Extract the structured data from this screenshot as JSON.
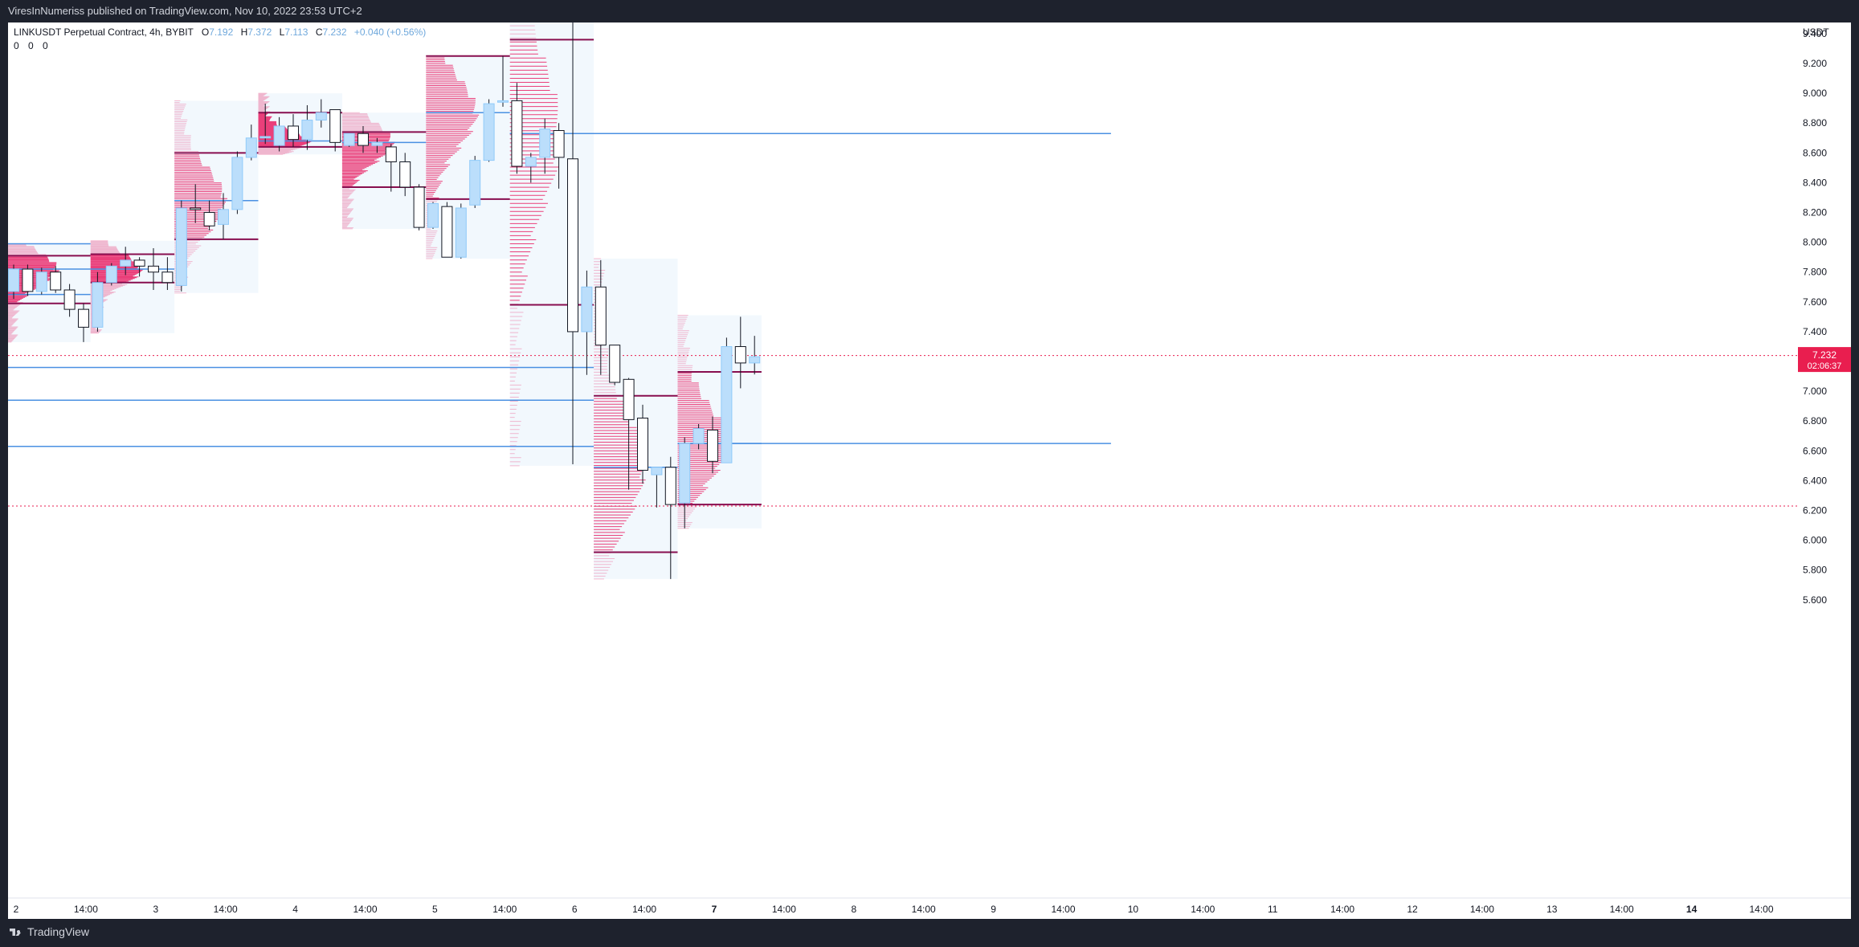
{
  "header": {
    "published": "ViresInNumeriss published on TradingView.com, Nov 10, 2022 23:53 UTC+2"
  },
  "legend": {
    "symbol": "LINKUSDT Perpetual Contract, 4h, BYBIT",
    "o_label": "O",
    "o_value": "7.192",
    "h_label": "H",
    "h_value": "7.372",
    "l_label": "L",
    "l_value": "7.113",
    "c_label": "C",
    "c_value": "7.232",
    "change": "+0.040 (+0.56%)",
    "indicator_values": "0 0 0"
  },
  "price_axis": {
    "currency": "USDT",
    "last_price": "7.232",
    "countdown": "02:06:37"
  },
  "footer": {
    "brand": "TradingView"
  },
  "colors": {
    "bull_body": "#bbdefb",
    "bear_body": "#ffffff",
    "wick": "#131722",
    "poc_line": "#4a90e2",
    "value_area_line": "#880e4f",
    "profile": "#e91e63",
    "session_bg": "#f2f8fd",
    "last_price": "#e91e4f"
  },
  "chart_data": {
    "type": "candlestick",
    "timeframe": "4h",
    "y_ticks": [
      "9.400",
      "9.200",
      "9.000",
      "8.800",
      "8.600",
      "8.400",
      "8.200",
      "8.000",
      "7.800",
      "7.600",
      "7.400",
      "7.200",
      "7.000",
      "6.800",
      "6.600",
      "6.400",
      "6.200",
      "6.000",
      "5.800",
      "5.600"
    ],
    "x_ticks": [
      {
        "label": "2",
        "bold": false
      },
      {
        "label": "14:00",
        "bold": false
      },
      {
        "label": "3",
        "bold": false
      },
      {
        "label": "14:00",
        "bold": false
      },
      {
        "label": "4",
        "bold": false
      },
      {
        "label": "14:00",
        "bold": false
      },
      {
        "label": "5",
        "bold": false
      },
      {
        "label": "14:00",
        "bold": false
      },
      {
        "label": "6",
        "bold": false
      },
      {
        "label": "14:00",
        "bold": false
      },
      {
        "label": "7",
        "bold": true
      },
      {
        "label": "14:00",
        "bold": false
      },
      {
        "label": "8",
        "bold": false
      },
      {
        "label": "14:00",
        "bold": false
      },
      {
        "label": "9",
        "bold": false
      },
      {
        "label": "14:00",
        "bold": false
      },
      {
        "label": "10",
        "bold": false
      },
      {
        "label": "14:00",
        "bold": false
      },
      {
        "label": "11",
        "bold": false
      },
      {
        "label": "14:00",
        "bold": false
      },
      {
        "label": "12",
        "bold": false
      },
      {
        "label": "14:00",
        "bold": false
      },
      {
        "label": "13",
        "bold": false
      },
      {
        "label": "14:00",
        "bold": false
      },
      {
        "label": "14",
        "bold": true
      },
      {
        "label": "14:00",
        "bold": false
      }
    ],
    "candles": [
      {
        "o": 7.67,
        "h": 7.85,
        "l": 7.62,
        "c": 7.82
      },
      {
        "o": 7.82,
        "h": 7.85,
        "l": 7.64,
        "c": 7.67
      },
      {
        "o": 7.67,
        "h": 7.83,
        "l": 7.65,
        "c": 7.8
      },
      {
        "o": 7.8,
        "h": 7.84,
        "l": 7.66,
        "c": 7.68
      },
      {
        "o": 7.68,
        "h": 7.72,
        "l": 7.5,
        "c": 7.55
      },
      {
        "o": 7.55,
        "h": 7.59,
        "l": 7.33,
        "c": 7.43
      },
      {
        "o": 7.43,
        "h": 7.8,
        "l": 7.4,
        "c": 7.73
      },
      {
        "o": 7.73,
        "h": 7.86,
        "l": 7.71,
        "c": 7.84
      },
      {
        "o": 7.84,
        "h": 7.97,
        "l": 7.78,
        "c": 7.88
      },
      {
        "o": 7.88,
        "h": 7.9,
        "l": 7.77,
        "c": 7.84
      },
      {
        "o": 7.84,
        "h": 7.96,
        "l": 7.68,
        "c": 7.8
      },
      {
        "o": 7.8,
        "h": 7.9,
        "l": 7.68,
        "c": 7.73
      },
      {
        "o": 7.71,
        "h": 8.28,
        "l": 7.67,
        "c": 8.23
      },
      {
        "o": 8.23,
        "h": 8.39,
        "l": 8.13,
        "c": 8.22
      },
      {
        "o": 8.2,
        "h": 8.28,
        "l": 8.08,
        "c": 8.11
      },
      {
        "o": 8.12,
        "h": 8.33,
        "l": 8.02,
        "c": 8.22
      },
      {
        "o": 8.22,
        "h": 8.61,
        "l": 8.19,
        "c": 8.57
      },
      {
        "o": 8.57,
        "h": 8.79,
        "l": 8.55,
        "c": 8.7
      },
      {
        "o": 8.7,
        "h": 8.93,
        "l": 8.66,
        "c": 8.71
      },
      {
        "o": 8.65,
        "h": 8.84,
        "l": 8.61,
        "c": 8.78
      },
      {
        "o": 8.78,
        "h": 8.86,
        "l": 8.64,
        "c": 8.69
      },
      {
        "o": 8.69,
        "h": 8.92,
        "l": 8.62,
        "c": 8.82
      },
      {
        "o": 8.82,
        "h": 8.96,
        "l": 8.77,
        "c": 8.87
      },
      {
        "o": 8.89,
        "h": 8.89,
        "l": 8.61,
        "c": 8.67
      },
      {
        "o": 8.65,
        "h": 8.73,
        "l": 8.64,
        "c": 8.73
      },
      {
        "o": 8.73,
        "h": 8.78,
        "l": 8.6,
        "c": 8.65
      },
      {
        "o": 8.65,
        "h": 8.7,
        "l": 8.6,
        "c": 8.67
      },
      {
        "o": 8.64,
        "h": 8.66,
        "l": 8.34,
        "c": 8.54
      },
      {
        "o": 8.54,
        "h": 8.6,
        "l": 8.31,
        "c": 8.37
      },
      {
        "o": 8.37,
        "h": 8.39,
        "l": 8.08,
        "c": 8.1
      },
      {
        "o": 8.1,
        "h": 8.27,
        "l": 8.09,
        "c": 8.26
      },
      {
        "o": 8.24,
        "h": 8.27,
        "l": 7.9,
        "c": 7.9
      },
      {
        "o": 7.9,
        "h": 8.26,
        "l": 7.89,
        "c": 8.23
      },
      {
        "o": 8.25,
        "h": 8.58,
        "l": 8.23,
        "c": 8.55
      },
      {
        "o": 8.55,
        "h": 8.96,
        "l": 8.54,
        "c": 8.93
      },
      {
        "o": 8.94,
        "h": 9.25,
        "l": 8.91,
        "c": 8.95
      },
      {
        "o": 8.95,
        "h": 9.07,
        "l": 8.46,
        "c": 8.51
      },
      {
        "o": 8.51,
        "h": 8.6,
        "l": 8.4,
        "c": 8.57
      },
      {
        "o": 8.57,
        "h": 8.83,
        "l": 8.46,
        "c": 8.76
      },
      {
        "o": 8.75,
        "h": 8.8,
        "l": 8.36,
        "c": 8.57
      },
      {
        "o": 8.56,
        "h": 9.48,
        "l": 6.51,
        "c": 7.4
      },
      {
        "o": 7.4,
        "h": 7.81,
        "l": 7.11,
        "c": 7.7
      },
      {
        "o": 7.7,
        "h": 7.88,
        "l": 7.11,
        "c": 7.31
      },
      {
        "o": 7.31,
        "h": 7.31,
        "l": 7.04,
        "c": 7.06
      },
      {
        "o": 7.08,
        "h": 7.09,
        "l": 6.34,
        "c": 6.81
      },
      {
        "o": 6.82,
        "h": 6.91,
        "l": 6.38,
        "c": 6.47
      },
      {
        "o": 6.44,
        "h": 6.49,
        "l": 6.22,
        "c": 6.49
      },
      {
        "o": 6.49,
        "h": 6.56,
        "l": 5.74,
        "c": 6.24
      },
      {
        "o": 6.25,
        "h": 6.69,
        "l": 6.08,
        "c": 6.65
      },
      {
        "o": 6.65,
        "h": 6.78,
        "l": 6.61,
        "c": 6.75
      },
      {
        "o": 6.74,
        "h": 6.83,
        "l": 6.45,
        "c": 6.53
      },
      {
        "o": 6.52,
        "h": 7.36,
        "l": 6.52,
        "c": 7.3
      },
      {
        "o": 7.3,
        "h": 7.5,
        "l": 7.02,
        "c": 7.19
      },
      {
        "o": 7.19,
        "h": 7.372,
        "l": 7.113,
        "c": 7.232
      }
    ],
    "sessions": [
      {
        "day": "2",
        "start": 0,
        "end": 5,
        "low": 7.33,
        "high": 7.99,
        "poc": 7.82,
        "vah": 7.91,
        "val": 7.59
      },
      {
        "day": "3",
        "start": 6,
        "end": 11,
        "low": 7.39,
        "high": 8.01,
        "poc": 7.82,
        "vah": 7.92,
        "val": 7.73
      },
      {
        "day": "4",
        "start": 12,
        "end": 17,
        "low": 7.66,
        "high": 8.95,
        "poc": 8.28,
        "vah": 8.6,
        "val": 8.02
      },
      {
        "day": "5",
        "start": 18,
        "end": 23,
        "low": 8.59,
        "high": 9.0,
        "poc": 8.68,
        "vah": 8.87,
        "val": 8.64
      },
      {
        "day": "6",
        "start": 24,
        "end": 29,
        "low": 8.09,
        "high": 8.87,
        "poc": 8.67,
        "vah": 8.74,
        "val": 8.37
      },
      {
        "day": "7",
        "start": 30,
        "end": 35,
        "low": 7.89,
        "high": 9.25,
        "poc": 8.87,
        "vah": 9.25,
        "val": 8.29
      },
      {
        "day": "8",
        "start": 36,
        "end": 41,
        "low": 6.5,
        "high": 9.48,
        "poc": 8.73,
        "vah": 9.36,
        "val": 7.58
      },
      {
        "day": "9",
        "start": 42,
        "end": 47,
        "low": 5.74,
        "high": 7.89,
        "poc": 6.49,
        "vah": 6.97,
        "val": 5.92
      },
      {
        "day": "10",
        "start": 48,
        "end": 53,
        "low": 6.08,
        "high": 7.51,
        "poc": 6.65,
        "vah": 7.13,
        "val": 6.24
      }
    ],
    "extended_lines": [
      {
        "price": 7.99,
        "from": 0,
        "to": 5,
        "kind": "poc"
      },
      {
        "price": 7.65,
        "from": 0,
        "to": 5,
        "kind": "poc"
      },
      {
        "price": 7.16,
        "from": 0,
        "to": 41,
        "kind": "poc"
      },
      {
        "price": 6.94,
        "from": 0,
        "to": 41,
        "kind": "poc"
      },
      {
        "price": 6.63,
        "from": 0,
        "to": 41,
        "kind": "poc"
      },
      {
        "price": 8.73,
        "from": 36,
        "to": 78,
        "kind": "poc"
      },
      {
        "price": 6.65,
        "from": 48,
        "to": 78,
        "kind": "poc"
      }
    ],
    "dotted_lines": [
      7.24,
      6.23
    ],
    "last_price": 7.232,
    "y_range": [
      5.6,
      9.48
    ]
  }
}
